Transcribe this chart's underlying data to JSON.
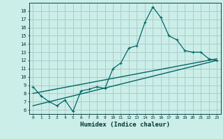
{
  "title": "",
  "xlabel": "Humidex (Indice chaleur)",
  "bg_color": "#cceee8",
  "grid_color": "#aacccc",
  "line_color": "#006666",
  "xlim": [
    -0.5,
    23.5
  ],
  "ylim": [
    5.5,
    19.0
  ],
  "xticks": [
    0,
    1,
    2,
    3,
    4,
    5,
    6,
    7,
    8,
    9,
    10,
    11,
    12,
    13,
    14,
    15,
    16,
    17,
    18,
    19,
    20,
    21,
    22,
    23
  ],
  "yticks": [
    6,
    7,
    8,
    9,
    10,
    11,
    12,
    13,
    14,
    15,
    16,
    17,
    18
  ],
  "line1_x": [
    0,
    1,
    2,
    3,
    4,
    5,
    6,
    7,
    8,
    9,
    10,
    11,
    12,
    13,
    14,
    15,
    16,
    17,
    18,
    19,
    20,
    21,
    22,
    23
  ],
  "line1_y": [
    8.8,
    7.7,
    7.0,
    6.5,
    7.2,
    5.8,
    8.3,
    8.5,
    8.8,
    8.6,
    11.0,
    11.7,
    13.5,
    13.8,
    16.6,
    18.5,
    17.2,
    15.0,
    14.5,
    13.2,
    13.0,
    13.0,
    12.2,
    12.0
  ],
  "line2_x": [
    0,
    23
  ],
  "line2_y": [
    8.0,
    12.2
  ],
  "line3_x": [
    0,
    23
  ],
  "line3_y": [
    6.5,
    12.0
  ]
}
